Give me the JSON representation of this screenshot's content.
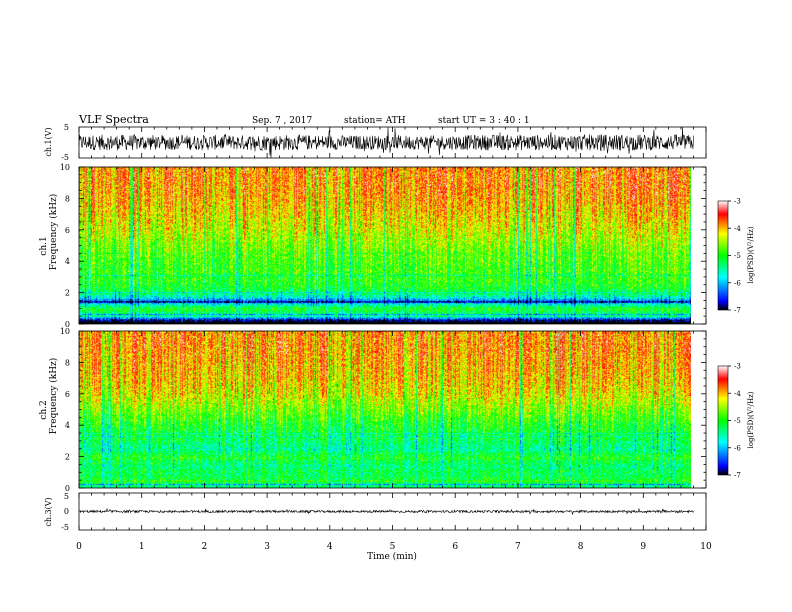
{
  "header": {
    "title": "VLF  Spectra",
    "date": "Sep. 7  , 2017",
    "station": "station= ATH",
    "start_ut": "start  UT  =    3  : 40 : 1"
  },
  "chart_data": [
    {
      "type": "line",
      "id": "ch1-waveform",
      "ylabel": "ch.1(V)",
      "ylim": [
        -5,
        5
      ],
      "yticks": [
        "5",
        "-5"
      ],
      "x": [
        0,
        0.5,
        1,
        1.5,
        2,
        2.5,
        3,
        3.5,
        4,
        4.5,
        5,
        5.5,
        6,
        6.5,
        7,
        7.5,
        8,
        8.5,
        9,
        9.5,
        9.8
      ],
      "y_mean": [
        0,
        0,
        0,
        0,
        0,
        0,
        0,
        0,
        0,
        0,
        0,
        0,
        0,
        0,
        0,
        0,
        0,
        0,
        0,
        0,
        0
      ],
      "y_envelope": [
        2.5,
        2.5,
        2.6,
        2.4,
        2.5,
        2.4,
        2.6,
        2.5,
        2.4,
        2.3,
        2.4,
        2.3,
        2.4,
        2.5,
        2.6,
        2.5,
        2.6,
        2.7,
        2.6,
        2.5,
        2.5
      ],
      "color": "#000000"
    },
    {
      "type": "heatmap",
      "id": "ch1-spectrogram",
      "ylabel_1": "ch.1",
      "ylabel_2": "Frequency (kHz)",
      "ylim": [
        0,
        10
      ],
      "yticks": [
        "0",
        "2",
        "4",
        "6",
        "8",
        "10"
      ],
      "xlim": [
        0,
        10
      ],
      "data_end_min": 9.8,
      "freq_kHz": [
        0.25,
        0.5,
        1,
        1.5,
        2,
        2.5,
        3,
        4,
        5,
        6,
        7,
        8,
        9,
        10
      ],
      "log_psd_profile": [
        -6.9,
        -5.5,
        -5.0,
        -6.2,
        -5.2,
        -5.0,
        -4.9,
        -4.8,
        -4.6,
        -4.3,
        -4.1,
        -3.9,
        -3.8,
        -3.8
      ],
      "colorbar": {
        "label": "log(PSD)(V²/Hz)",
        "ticks": [
          "-3",
          "-4",
          "-5",
          "-6",
          "-7"
        ],
        "range": [
          -7,
          -3
        ]
      }
    },
    {
      "type": "heatmap",
      "id": "ch2-spectrogram",
      "ylabel_1": "ch.2",
      "ylabel_2": "Frequency (kHz)",
      "ylim": [
        0,
        10
      ],
      "yticks": [
        "0",
        "2",
        "4",
        "6",
        "8",
        "10"
      ],
      "xlim": [
        0,
        10
      ],
      "data_end_min": 9.8,
      "freq_kHz": [
        0.25,
        0.5,
        1,
        1.5,
        2,
        2.5,
        3,
        4,
        5,
        6,
        7,
        8,
        9,
        10
      ],
      "log_psd_profile": [
        -5.3,
        -5.0,
        -5.2,
        -5.3,
        -5.0,
        -5.4,
        -5.2,
        -5.0,
        -4.6,
        -4.2,
        -4.0,
        -3.9,
        -3.8,
        -3.8
      ],
      "colorbar": {
        "label": "log(PSD)(V²/Hz)",
        "ticks": [
          "-3",
          "-4",
          "-5",
          "-6",
          "-7"
        ],
        "range": [
          -7,
          -3
        ]
      }
    },
    {
      "type": "line",
      "id": "ch3-waveform",
      "ylabel": "ch.3(V)",
      "ylim": [
        -5,
        5
      ],
      "yticks": [
        "5",
        "0",
        "-5"
      ],
      "x": [
        0,
        9.8
      ],
      "y_mean": [
        0,
        0
      ],
      "y_envelope": [
        0.3,
        0.3
      ],
      "color": "#000000"
    }
  ],
  "xaxis": {
    "label": "Time  (min)",
    "ticks": [
      "0",
      "1",
      "2",
      "3",
      "4",
      "5",
      "6",
      "7",
      "8",
      "9",
      "10"
    ],
    "xlim": [
      0,
      10
    ]
  },
  "colormap": [
    "#000000",
    "#0000ff",
    "#00ffff",
    "#00ff00",
    "#ffff00",
    "#ff0000",
    "#ffffff"
  ]
}
